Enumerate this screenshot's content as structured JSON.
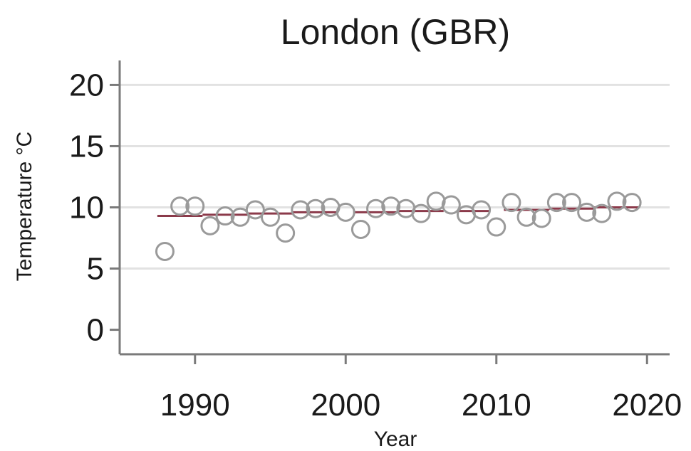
{
  "chart_data": {
    "type": "scatter",
    "title": "London (GBR)",
    "xlabel": "Year",
    "ylabel": "Temperature °C",
    "xlim": [
      1985,
      2021.5
    ],
    "ylim": [
      -2,
      22
    ],
    "xticks": [
      1990,
      2000,
      2010,
      2020
    ],
    "yticks": [
      0,
      5,
      10,
      15,
      20
    ],
    "grid": true,
    "colors": {
      "points": "#9a9a9a",
      "trend": "#8b3a4a",
      "grid": "#e2e2e2",
      "axis": "#7a7a7a"
    },
    "series": [
      {
        "type": "scatter",
        "points": [
          {
            "x": 1988,
            "y": 6.4
          },
          {
            "x": 1989,
            "y": 10.1
          },
          {
            "x": 1990,
            "y": 10.1
          },
          {
            "x": 1991,
            "y": 8.5
          },
          {
            "x": 1992,
            "y": 9.3
          },
          {
            "x": 1993,
            "y": 9.2
          },
          {
            "x": 1994,
            "y": 9.8
          },
          {
            "x": 1995,
            "y": 9.2
          },
          {
            "x": 1996,
            "y": 7.9
          },
          {
            "x": 1997,
            "y": 9.8
          },
          {
            "x": 1998,
            "y": 9.9
          },
          {
            "x": 1999,
            "y": 10.0
          },
          {
            "x": 2000,
            "y": 9.6
          },
          {
            "x": 2001,
            "y": 8.2
          },
          {
            "x": 2002,
            "y": 9.9
          },
          {
            "x": 2003,
            "y": 10.1
          },
          {
            "x": 2004,
            "y": 9.9
          },
          {
            "x": 2005,
            "y": 9.5
          },
          {
            "x": 2006,
            "y": 10.5
          },
          {
            "x": 2007,
            "y": 10.2
          },
          {
            "x": 2008,
            "y": 9.4
          },
          {
            "x": 2009,
            "y": 9.8
          },
          {
            "x": 2010,
            "y": 8.4
          },
          {
            "x": 2011,
            "y": 10.4
          },
          {
            "x": 2012,
            "y": 9.2
          },
          {
            "x": 2013,
            "y": 9.1
          },
          {
            "x": 2014,
            "y": 10.4
          },
          {
            "x": 2015,
            "y": 10.4
          },
          {
            "x": 2016,
            "y": 9.6
          },
          {
            "x": 2017,
            "y": 9.5
          },
          {
            "x": 2018,
            "y": 10.5
          },
          {
            "x": 2019,
            "y": 10.4
          }
        ]
      },
      {
        "type": "step-means",
        "segments": [
          {
            "x0": 1988,
            "x1": 1990,
            "y": 9.3
          },
          {
            "x0": 1991,
            "x1": 1993,
            "y": 9.4
          },
          {
            "x0": 1994,
            "x1": 1996,
            "y": 9.5
          },
          {
            "x0": 1997,
            "x1": 1999,
            "y": 9.6
          },
          {
            "x0": 2001,
            "x1": 2003,
            "y": 9.6
          },
          {
            "x0": 2004,
            "x1": 2006,
            "y": 9.7
          },
          {
            "x0": 2008,
            "x1": 2009,
            "y": 9.7
          },
          {
            "x0": 2011,
            "x1": 2013,
            "y": 9.8
          },
          {
            "x0": 2014,
            "x1": 2016,
            "y": 9.9
          },
          {
            "x0": 2017,
            "x1": 2019,
            "y": 10.0
          }
        ]
      }
    ]
  }
}
